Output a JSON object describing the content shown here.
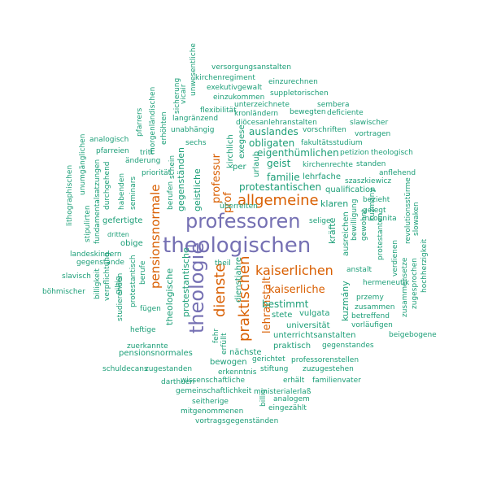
{
  "colors": {
    "purple": "#7570b3",
    "orange": "#d95f02",
    "teal": "#1b9e77",
    "background": "#ffffff"
  },
  "words": [
    {
      "text": "theologischen",
      "color": "purple",
      "weight": 10
    },
    {
      "text": "professoren",
      "color": "purple",
      "weight": 9
    },
    {
      "text": "theologie",
      "color": "purple",
      "weight": 9
    },
    {
      "text": "allgemeine",
      "color": "orange",
      "weight": 6
    },
    {
      "text": "kaiserlichen",
      "color": "orange",
      "weight": 6
    },
    {
      "text": "dienste",
      "color": "orange",
      "weight": 6
    },
    {
      "text": "praktischen",
      "color": "orange",
      "weight": 6
    },
    {
      "text": "pensionsnormale",
      "color": "orange",
      "weight": 5
    },
    {
      "text": "kaiserliche",
      "color": "orange",
      "weight": 5
    },
    {
      "text": "lehranstalt",
      "color": "orange",
      "weight": 5
    },
    {
      "text": "professur",
      "color": "orange",
      "weight": 4
    },
    {
      "text": "prof",
      "color": "orange",
      "weight": 4
    },
    {
      "text": "protestantischen",
      "color": "teal",
      "weight": 3
    },
    {
      "text": "eigenthümlichen",
      "color": "teal",
      "weight": 3
    },
    {
      "text": "bestimmt",
      "color": "teal",
      "weight": 3
    },
    {
      "text": "familie",
      "color": "teal",
      "weight": 3
    },
    {
      "text": "auslandes",
      "color": "teal",
      "weight": 3
    },
    {
      "text": "obligaten",
      "color": "teal",
      "weight": 3
    },
    {
      "text": "geist",
      "color": "teal",
      "weight": 3
    },
    {
      "text": "klaren",
      "color": "teal",
      "weight": 3
    },
    {
      "text": "lehrfache",
      "color": "teal",
      "weight": 2
    },
    {
      "text": "qualification",
      "color": "teal",
      "weight": 2
    },
    {
      "text": "geistliche",
      "color": "teal",
      "weight": 2
    },
    {
      "text": "gegenständen",
      "color": "teal",
      "weight": 2
    },
    {
      "text": "protestantische",
      "color": "teal",
      "weight": 2
    },
    {
      "text": "theologische",
      "color": "teal",
      "weight": 2
    },
    {
      "text": "dienstjahre",
      "color": "teal",
      "weight": 2
    },
    {
      "text": "unterrichtsanstalten",
      "color": "teal",
      "weight": 2
    },
    {
      "text": "universität",
      "color": "teal",
      "weight": 2
    },
    {
      "text": "pensionsnormales",
      "color": "teal",
      "weight": 2
    },
    {
      "text": "vulgata",
      "color": "teal",
      "weight": 2
    },
    {
      "text": "stete",
      "color": "teal",
      "weight": 2
    },
    {
      "text": "praktisch",
      "color": "teal",
      "weight": 2
    },
    {
      "text": "nächste",
      "color": "teal",
      "weight": 2
    },
    {
      "text": "bewogen",
      "color": "teal",
      "weight": 2
    },
    {
      "text": "kräfte",
      "color": "teal",
      "weight": 2
    },
    {
      "text": "kuzmány",
      "color": "teal",
      "weight": 2
    },
    {
      "text": "ausreichen",
      "color": "teal",
      "weight": 2
    },
    {
      "text": "exegese",
      "color": "teal",
      "weight": 2
    },
    {
      "text": "kirchlich",
      "color": "teal",
      "weight": 2
    },
    {
      "text": "urlaub",
      "color": "teal",
      "weight": 2
    },
    {
      "text": "per",
      "color": "teal",
      "weight": 2
    },
    {
      "text": "sechs",
      "color": "teal",
      "weight": 1
    },
    {
      "text": "obige",
      "color": "teal",
      "weight": 2
    },
    {
      "text": "gefertigte",
      "color": "teal",
      "weight": 2
    },
    {
      "text": "dritten",
      "color": "teal",
      "weight": 1
    },
    {
      "text": "versorgungsanstalten",
      "color": "teal",
      "weight": 1
    },
    {
      "text": "kirchenregiment",
      "color": "teal",
      "weight": 1
    },
    {
      "text": "einzurechnen",
      "color": "teal",
      "weight": 1
    },
    {
      "text": "exekutivgewalt",
      "color": "teal",
      "weight": 1
    },
    {
      "text": "suppletorischen",
      "color": "teal",
      "weight": 1
    },
    {
      "text": "einzukommen",
      "color": "teal",
      "weight": 1
    },
    {
      "text": "unterzeichnete",
      "color": "teal",
      "weight": 1
    },
    {
      "text": "sembera",
      "color": "teal",
      "weight": 1
    },
    {
      "text": "flexibilität",
      "color": "teal",
      "weight": 1
    },
    {
      "text": "kronländern",
      "color": "teal",
      "weight": 1
    },
    {
      "text": "bewegten",
      "color": "teal",
      "weight": 1
    },
    {
      "text": "deficiente",
      "color": "teal",
      "weight": 1
    },
    {
      "text": "langränzend",
      "color": "teal",
      "weight": 1
    },
    {
      "text": "diöcesanlehranstalten",
      "color": "teal",
      "weight": 1
    },
    {
      "text": "slawischer",
      "color": "teal",
      "weight": 1
    },
    {
      "text": "unabhängig",
      "color": "teal",
      "weight": 1
    },
    {
      "text": "vorschriften",
      "color": "teal",
      "weight": 1
    },
    {
      "text": "vortragen",
      "color": "teal",
      "weight": 1
    },
    {
      "text": "fakultätsstudium",
      "color": "teal",
      "weight": 1
    },
    {
      "text": "petizion",
      "color": "teal",
      "weight": 1
    },
    {
      "text": "theologisch",
      "color": "teal",
      "weight": 1
    },
    {
      "text": "kirchenrechte",
      "color": "teal",
      "weight": 1
    },
    {
      "text": "standen",
      "color": "teal",
      "weight": 1
    },
    {
      "text": "szaszkiewicz",
      "color": "teal",
      "weight": 1
    },
    {
      "text": "anflehend",
      "color": "teal",
      "weight": 1
    },
    {
      "text": "bezieht",
      "color": "teal",
      "weight": 1
    },
    {
      "text": "gelegt",
      "color": "teal",
      "weight": 1
    },
    {
      "text": "incognita",
      "color": "teal",
      "weight": 1
    },
    {
      "text": "selige",
      "color": "teal",
      "weight": 1
    },
    {
      "text": "überreiten",
      "color": "teal",
      "weight": 1
    },
    {
      "text": "anstalt",
      "color": "teal",
      "weight": 1
    },
    {
      "text": "hermeneutik",
      "color": "teal",
      "weight": 1
    },
    {
      "text": "przemy",
      "color": "teal",
      "weight": 1
    },
    {
      "text": "zusammen",
      "color": "teal",
      "weight": 1
    },
    {
      "text": "betreffend",
      "color": "teal",
      "weight": 1
    },
    {
      "text": "vorläufigen",
      "color": "teal",
      "weight": 1
    },
    {
      "text": "beigebogene",
      "color": "teal",
      "weight": 1
    },
    {
      "text": "gegenstandes",
      "color": "teal",
      "weight": 1
    },
    {
      "text": "professorenstellen",
      "color": "teal",
      "weight": 1
    },
    {
      "text": "gerichtet",
      "color": "teal",
      "weight": 1
    },
    {
      "text": "zuzugestehen",
      "color": "teal",
      "weight": 1
    },
    {
      "text": "erkenntnis",
      "color": "teal",
      "weight": 1
    },
    {
      "text": "stiftung",
      "color": "teal",
      "weight": 1
    },
    {
      "text": "wissenschaftliche",
      "color": "teal",
      "weight": 1
    },
    {
      "text": "erhält",
      "color": "teal",
      "weight": 1
    },
    {
      "text": "familienvater",
      "color": "teal",
      "weight": 1
    },
    {
      "text": "gemeinschaftlichkeit",
      "color": "teal",
      "weight": 1
    },
    {
      "text": "ministerialerlaß",
      "color": "teal",
      "weight": 1
    },
    {
      "text": "seitherige",
      "color": "teal",
      "weight": 1
    },
    {
      "text": "analogem",
      "color": "teal",
      "weight": 1
    },
    {
      "text": "mitgenommenen",
      "color": "teal",
      "weight": 1
    },
    {
      "text": "eingezählt",
      "color": "teal",
      "weight": 1
    },
    {
      "text": "vortragsgegenständen",
      "color": "teal",
      "weight": 1
    },
    {
      "text": "darthuen",
      "color": "teal",
      "weight": 1
    },
    {
      "text": "zugestanden",
      "color": "teal",
      "weight": 1
    },
    {
      "text": "schuldecans",
      "color": "teal",
      "weight": 1
    },
    {
      "text": "zuerkannte",
      "color": "teal",
      "weight": 1
    },
    {
      "text": "heftige",
      "color": "teal",
      "weight": 1
    },
    {
      "text": "fügen",
      "color": "teal",
      "weight": 1
    },
    {
      "text": "studierenden",
      "color": "teal",
      "weight": 1
    },
    {
      "text": "böhmischer",
      "color": "teal",
      "weight": 1
    },
    {
      "text": "gegenstände",
      "color": "teal",
      "weight": 1
    },
    {
      "text": "landeskindern",
      "color": "teal",
      "weight": 1
    },
    {
      "text": "slavisch",
      "color": "teal",
      "weight": 1
    },
    {
      "text": "billigkeit",
      "color": "teal",
      "weight": 1
    },
    {
      "text": "verpflichtung",
      "color": "teal",
      "weight": 1
    },
    {
      "text": "giltig",
      "color": "teal",
      "weight": 1
    },
    {
      "text": "protestantisch",
      "color": "teal",
      "weight": 1
    },
    {
      "text": "berufe",
      "color": "teal",
      "weight": 1
    },
    {
      "text": "stipulirten",
      "color": "teal",
      "weight": 1
    },
    {
      "text": "fundamentalsatzungen",
      "color": "teal",
      "weight": 1
    },
    {
      "text": "durchgehend",
      "color": "teal",
      "weight": 1
    },
    {
      "text": "habenden",
      "color": "teal",
      "weight": 1
    },
    {
      "text": "seminars",
      "color": "teal",
      "weight": 1
    },
    {
      "text": "lithographischen",
      "color": "teal",
      "weight": 1
    },
    {
      "text": "unumgänglichen",
      "color": "teal",
      "weight": 1
    },
    {
      "text": "analogisch",
      "color": "teal",
      "weight": 1
    },
    {
      "text": "pfarreien",
      "color": "teal",
      "weight": 1
    },
    {
      "text": "änderung",
      "color": "teal",
      "weight": 1
    },
    {
      "text": "priorität",
      "color": "teal",
      "weight": 1
    },
    {
      "text": "tritt",
      "color": "teal",
      "weight": 1
    },
    {
      "text": "pfarrers",
      "color": "teal",
      "weight": 1
    },
    {
      "text": "morgenländischen",
      "color": "teal",
      "weight": 1
    },
    {
      "text": "erhöhten",
      "color": "teal",
      "weight": 1
    },
    {
      "text": "sicherung",
      "color": "teal",
      "weight": 1
    },
    {
      "text": "vicair",
      "color": "teal",
      "weight": 1
    },
    {
      "text": "unwesentliche",
      "color": "teal",
      "weight": 1
    },
    {
      "text": "schein",
      "color": "teal",
      "weight": 1
    },
    {
      "text": "berufen",
      "color": "teal",
      "weight": 1
    },
    {
      "text": "theil",
      "color": "teal",
      "weight": 1
    },
    {
      "text": "erfüllt",
      "color": "teal",
      "weight": 1
    },
    {
      "text": "fehr",
      "color": "teal",
      "weight": 1
    },
    {
      "text": "billig",
      "color": "teal",
      "weight": 1
    },
    {
      "text": "bewilligung",
      "color": "teal",
      "weight": 1
    },
    {
      "text": "gewohnt",
      "color": "teal",
      "weight": 1
    },
    {
      "text": "protestanten",
      "color": "teal",
      "weight": 1
    },
    {
      "text": "kuzmány",
      "color": "teal",
      "weight": 1
    },
    {
      "text": "verdienen",
      "color": "teal",
      "weight": 1
    },
    {
      "text": "zusammensetze",
      "color": "teal",
      "weight": 1
    },
    {
      "text": "zugesprochen",
      "color": "teal",
      "weight": 1
    },
    {
      "text": "revolutionsstürme",
      "color": "teal",
      "weight": 1
    },
    {
      "text": "slowaken",
      "color": "teal",
      "weight": 1
    },
    {
      "text": "hochherzigkeit",
      "color": "teal",
      "weight": 1
    }
  ]
}
